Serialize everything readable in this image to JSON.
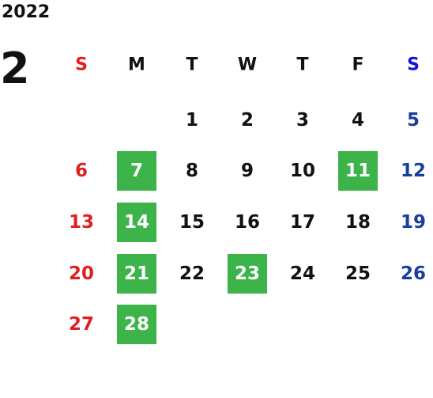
{
  "year": "2022",
  "month": "2",
  "weekdays": [
    {
      "label": "S",
      "color": "#e02020"
    },
    {
      "label": "M",
      "color": "#111111"
    },
    {
      "label": "T",
      "color": "#111111"
    },
    {
      "label": "W",
      "color": "#111111"
    },
    {
      "label": "T",
      "color": "#111111"
    },
    {
      "label": "F",
      "color": "#111111"
    },
    {
      "label": "S",
      "color": "#1010e0"
    }
  ],
  "day_colors": [
    "#e02020",
    "#111111",
    "#111111",
    "#111111",
    "#111111",
    "#111111",
    "#1a3f9a"
  ],
  "highlight_color": "#3cb44a",
  "weeks": [
    [
      null,
      null,
      {
        "day": 1
      },
      {
        "day": 2
      },
      {
        "day": 3
      },
      {
        "day": 4
      },
      {
        "day": 5
      }
    ],
    [
      {
        "day": 6
      },
      {
        "day": 7,
        "highlight": true
      },
      {
        "day": 8
      },
      {
        "day": 9
      },
      {
        "day": 10
      },
      {
        "day": 11,
        "highlight": true
      },
      {
        "day": 12
      }
    ],
    [
      {
        "day": 13
      },
      {
        "day": 14,
        "highlight": true
      },
      {
        "day": 15
      },
      {
        "day": 16
      },
      {
        "day": 17
      },
      {
        "day": 18
      },
      {
        "day": 19
      }
    ],
    [
      {
        "day": 20
      },
      {
        "day": 21,
        "highlight": true
      },
      {
        "day": 22
      },
      {
        "day": 23,
        "highlight": true
      },
      {
        "day": 24
      },
      {
        "day": 25
      },
      {
        "day": 26
      }
    ],
    [
      {
        "day": 27
      },
      {
        "day": 28,
        "highlight": true
      },
      null,
      null,
      null,
      null,
      null
    ]
  ]
}
